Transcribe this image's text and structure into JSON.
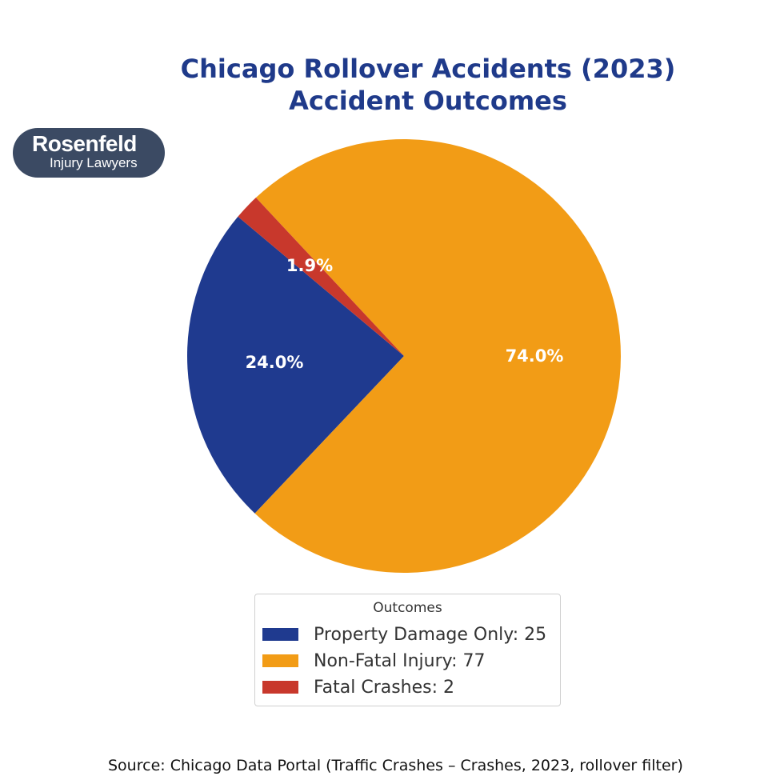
{
  "title_line1": "Chicago Rollover Accidents (2023)",
  "title_line2": "Accident Outcomes",
  "logo": {
    "line1": "Rosenfeld",
    "line2": "Injury Lawyers",
    "bg": "#3b4a63"
  },
  "legend": {
    "title": "Outcomes",
    "items": [
      {
        "label": "Property Damage Only: 25",
        "color": "#1f3a8f"
      },
      {
        "label": "Non-Fatal Injury: 77",
        "color": "#f29c16"
      },
      {
        "label": "Fatal Crashes: 2",
        "color": "#c8382c"
      }
    ]
  },
  "labels": {
    "p0": "24.0%",
    "p1": "74.0%",
    "p2": "1.9%"
  },
  "source": "Source: Chicago Data Portal (Traffic Crashes – Crashes, 2023, rollover filter)",
  "chart_data": {
    "type": "pie",
    "title": "Chicago Rollover Accidents (2023)\nAccident Outcomes",
    "categories": [
      "Property Damage Only",
      "Non-Fatal Injury",
      "Fatal Crashes"
    ],
    "values": [
      25,
      77,
      2
    ],
    "percentages": [
      24.0,
      74.0,
      1.9
    ],
    "colors": [
      "#1f3a8f",
      "#f29c16",
      "#c8382c"
    ],
    "start_angle": 140,
    "legend_title": "Outcomes",
    "legend_position": "bottom center",
    "source": "Source: Chicago Data Portal (Traffic Crashes – Crashes, 2023, rollover filter)"
  }
}
